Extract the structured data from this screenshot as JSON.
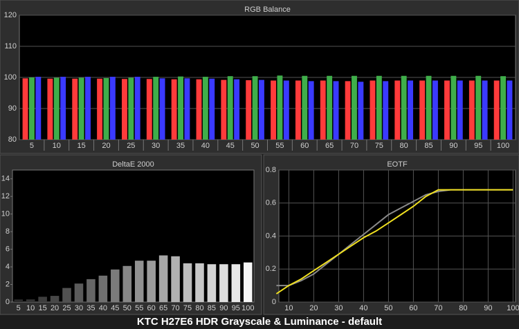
{
  "chart_data": [
    {
      "type": "grouped-bar",
      "title": "RGB Balance",
      "categories": [
        5,
        10,
        15,
        20,
        25,
        30,
        35,
        40,
        45,
        50,
        55,
        60,
        65,
        70,
        75,
        80,
        85,
        90,
        95,
        100
      ],
      "series": [
        {
          "color": "#ff3b3b",
          "values": [
            99.7,
            99.6,
            99.6,
            99.6,
            99.5,
            99.5,
            99.4,
            99.4,
            99.2,
            99.1,
            99,
            99,
            99,
            98.8,
            99,
            99,
            99,
            99,
            99,
            99
          ]
        },
        {
          "color": "#3fae4a",
          "values": [
            100,
            99.9,
            99.9,
            99.8,
            99.9,
            100.2,
            100.3,
            100.2,
            100.4,
            100.4,
            100.6,
            100.5,
            100.5,
            100.5,
            100.5,
            100.5,
            100.5,
            100.5,
            100.5,
            100.4
          ]
        },
        {
          "color": "#3a3aff",
          "values": [
            100.2,
            100.2,
            100.2,
            100.2,
            100.2,
            99.7,
            99.7,
            99.6,
            99.4,
            99.2,
            99,
            98.8,
            98.8,
            98.6,
            98.8,
            99,
            99,
            99,
            99,
            99
          ]
        }
      ],
      "ylim": [
        80,
        120
      ],
      "yticks": [
        80,
        90,
        100,
        110,
        120
      ],
      "grid": true
    },
    {
      "type": "bar",
      "title": "DeltaE 2000",
      "categories": [
        5,
        10,
        15,
        20,
        25,
        30,
        35,
        40,
        45,
        50,
        55,
        60,
        65,
        70,
        75,
        80,
        85,
        90,
        95,
        100
      ],
      "values": [
        0.3,
        0.3,
        0.6,
        0.7,
        1.6,
        2.1,
        2.6,
        3.0,
        3.7,
        4.1,
        4.7,
        4.7,
        5.3,
        5.2,
        4.4,
        4.4,
        4.3,
        4.3,
        4.3,
        4.5
      ],
      "colors": [
        "#2a2a2a",
        "#333333",
        "#3d3d3d",
        "#474747",
        "#515151",
        "#5b5b5b",
        "#666666",
        "#707070",
        "#7b7b7b",
        "#868686",
        "#919191",
        "#9c9c9c",
        "#a7a7a7",
        "#b2b2b2",
        "#bdbdbd",
        "#c8c8c8",
        "#d3d3d3",
        "#dedede",
        "#e9e9e9",
        "#f5f5f5"
      ],
      "ylim": [
        0,
        15
      ],
      "yticks": [
        0,
        2,
        4,
        6,
        8,
        10,
        12,
        14
      ],
      "grid": false
    },
    {
      "type": "line",
      "title": "EOTF",
      "x": [
        5,
        10,
        15,
        20,
        25,
        30,
        35,
        40,
        45,
        50,
        55,
        60,
        65,
        70,
        75,
        80,
        85,
        90,
        95,
        100
      ],
      "series": [
        {
          "color": "#8a8a8a",
          "values": [
            0.1,
            0.1,
            0.13,
            0.17,
            0.23,
            0.29,
            0.35,
            0.41,
            0.47,
            0.53,
            0.57,
            0.61,
            0.65,
            0.67,
            0.68,
            0.68,
            0.68,
            0.68,
            0.68,
            0.68
          ]
        },
        {
          "color": "#f0e020",
          "values": [
            0.05,
            0.1,
            0.14,
            0.19,
            0.24,
            0.29,
            0.34,
            0.39,
            0.43,
            0.48,
            0.53,
            0.58,
            0.64,
            0.68,
            0.68,
            0.68,
            0.68,
            0.68,
            0.68,
            0.68
          ]
        }
      ],
      "xlim": [
        6,
        101
      ],
      "xticks": [
        10,
        20,
        30,
        40,
        50,
        60,
        70,
        80,
        90,
        100
      ],
      "ylim": [
        0,
        0.8
      ],
      "yticks": [
        0,
        0.2,
        0.4,
        0.6,
        0.8
      ],
      "grid": true
    }
  ],
  "caption": "KTC H27E6 HDR Grayscale & Luminance - default"
}
